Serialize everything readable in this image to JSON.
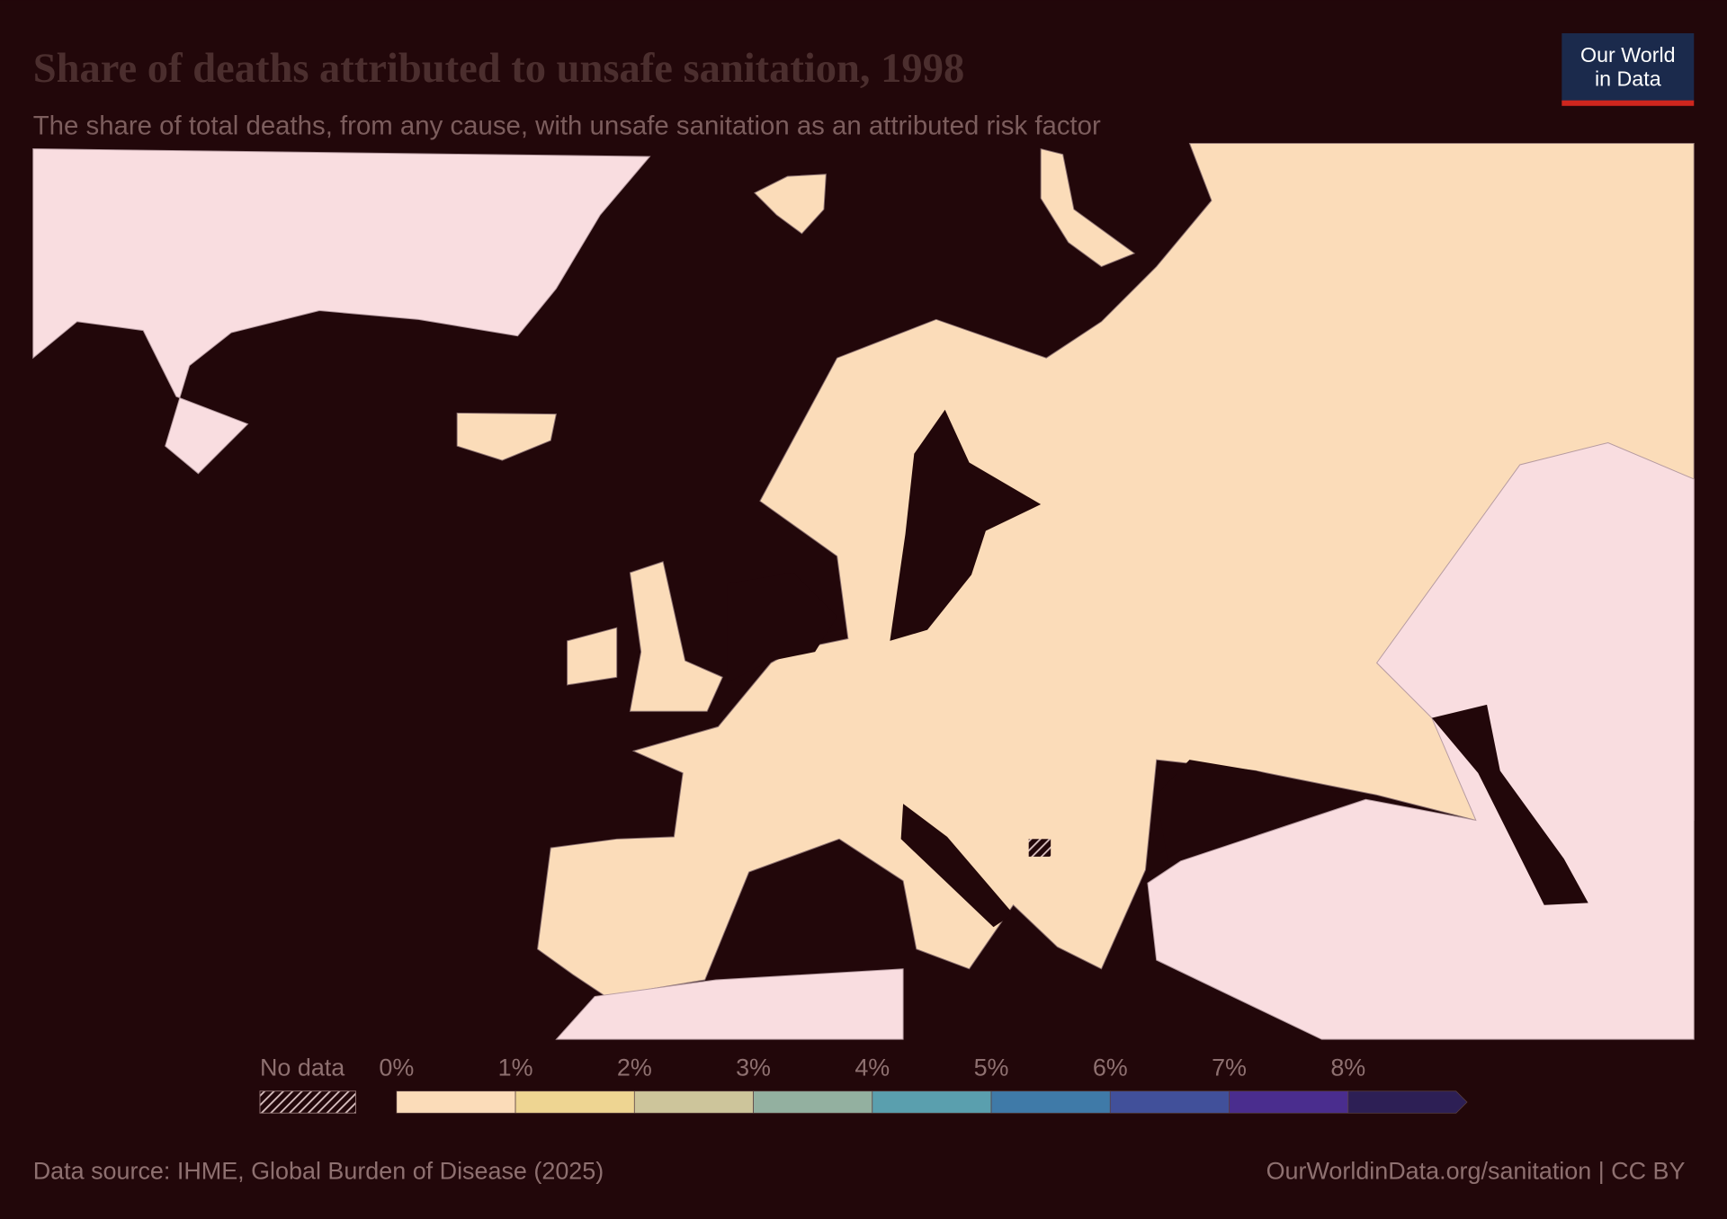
{
  "header": {
    "title": "Share of deaths attributed to unsafe sanitation, 1998",
    "subtitle": "The share of total deaths, from any cause, with unsafe sanitation as an attributed risk factor",
    "logo": [
      "Our World",
      "in Data"
    ]
  },
  "legend": {
    "no_data": "No data",
    "ticks": [
      {
        "value": 0,
        "label": "0%"
      },
      {
        "value": 1,
        "label": "1%"
      },
      {
        "value": 2,
        "label": "2%"
      },
      {
        "value": 3,
        "label": "3%"
      },
      {
        "value": 4,
        "label": "4%"
      },
      {
        "value": 5,
        "label": "5%"
      },
      {
        "value": 6,
        "label": "6%"
      },
      {
        "value": 7,
        "label": "7%"
      },
      {
        "value": 8,
        "label": "8%"
      }
    ],
    "colors": [
      "#fbdcb9",
      "#eed592",
      "#cdc59b",
      "#93b0a0",
      "#5a9fae",
      "#3f7aa8",
      "#41509a",
      "#4a2d8e",
      "#2d1f55"
    ]
  },
  "footer": {
    "source": "Data source: IHME, Global Burden of Disease (2025)",
    "url": "OurWorldinData.org/sanitation | CC BY"
  }
}
